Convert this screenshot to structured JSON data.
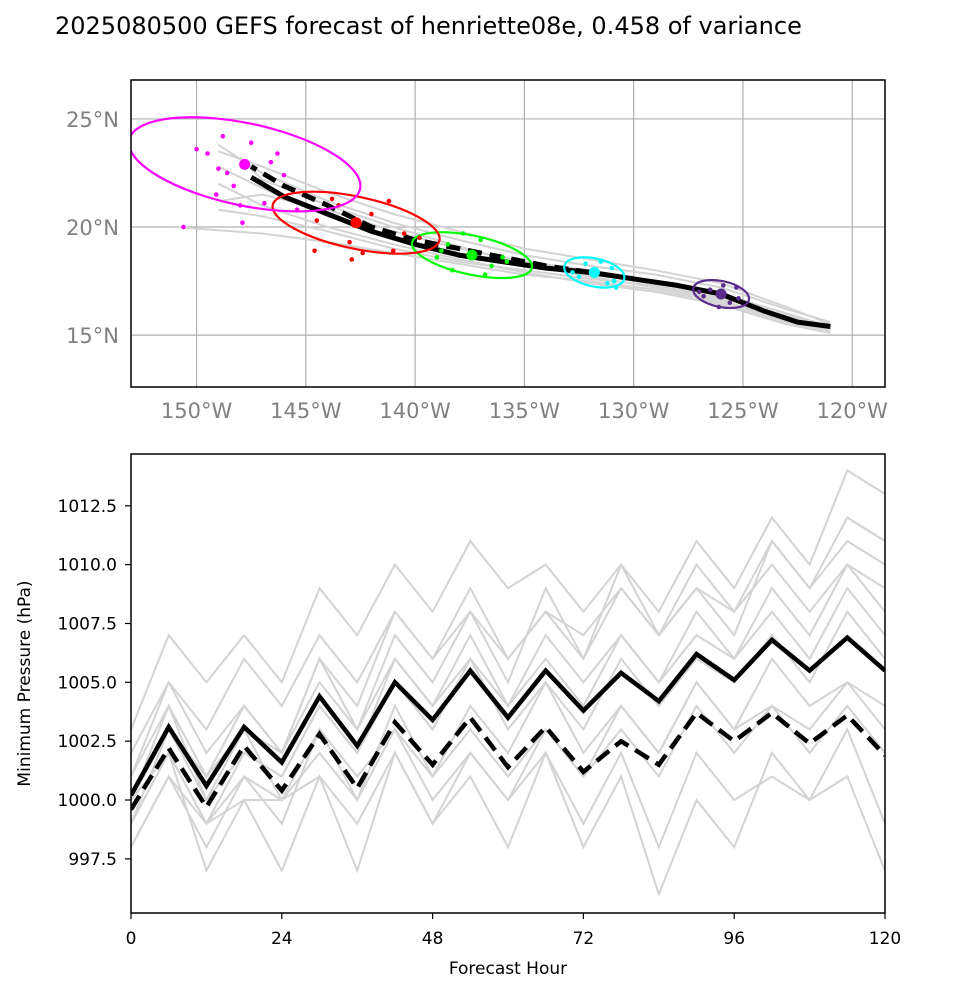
{
  "title": "2025080500 GEFS forecast of henriette08e, 0.458 of variance",
  "chart_data": [
    {
      "type": "scatter",
      "subtype": "track-map",
      "xlim": [
        -153,
        -118.5
      ],
      "ylim": [
        12.6,
        26.8
      ],
      "xticks": [
        -150,
        -145,
        -140,
        -135,
        -130,
        -125,
        -120
      ],
      "xtick_labels": [
        "150°W",
        "145°W",
        "140°W",
        "135°W",
        "130°W",
        "125°W",
        "120°W"
      ],
      "yticks": [
        15,
        20,
        25
      ],
      "ytick_labels": [
        "15°N",
        "20°N",
        "25°N"
      ],
      "grid": true,
      "ensemble_color": "#d3d3d3",
      "members": [
        [
          [
            -121,
            15.3
          ],
          [
            -123,
            15.8
          ],
          [
            -126,
            16.8
          ],
          [
            -129,
            17.4
          ],
          [
            -132,
            17.8
          ],
          [
            -135,
            18.2
          ],
          [
            -138,
            18.8
          ],
          [
            -141,
            19.5
          ],
          [
            -144,
            20.5
          ],
          [
            -147,
            21.8
          ],
          [
            -149,
            22.8
          ]
        ],
        [
          [
            -121,
            15.2
          ],
          [
            -123,
            15.6
          ],
          [
            -126,
            16.5
          ],
          [
            -129,
            17.1
          ],
          [
            -132,
            17.5
          ],
          [
            -135,
            17.8
          ],
          [
            -138,
            18.3
          ],
          [
            -141,
            18.8
          ],
          [
            -144,
            19.3
          ],
          [
            -147,
            19.7
          ],
          [
            -151,
            20.0
          ]
        ],
        [
          [
            -121,
            15.6
          ],
          [
            -123,
            16.2
          ],
          [
            -126,
            17.2
          ],
          [
            -129,
            17.8
          ],
          [
            -132,
            18.2
          ],
          [
            -135,
            18.7
          ],
          [
            -138,
            19.4
          ],
          [
            -141,
            20.2
          ],
          [
            -144,
            21.2
          ],
          [
            -147,
            22.5
          ],
          [
            -149,
            23.8
          ]
        ],
        [
          [
            -121,
            15.4
          ],
          [
            -123,
            16.0
          ],
          [
            -126,
            16.9
          ],
          [
            -129,
            17.5
          ],
          [
            -132,
            18.0
          ],
          [
            -135,
            18.4
          ],
          [
            -138,
            19.0
          ],
          [
            -141,
            19.8
          ],
          [
            -144,
            20.8
          ],
          [
            -147,
            21.5
          ],
          [
            -149,
            21.2
          ]
        ],
        [
          [
            -121,
            15.1
          ],
          [
            -123,
            15.5
          ],
          [
            -126,
            16.4
          ],
          [
            -129,
            17.0
          ],
          [
            -132,
            17.4
          ],
          [
            -135,
            17.9
          ],
          [
            -138,
            18.5
          ],
          [
            -141,
            19.2
          ],
          [
            -144,
            20.0
          ],
          [
            -147,
            21.0
          ],
          [
            -149,
            22.0
          ]
        ],
        [
          [
            -121,
            15.5
          ],
          [
            -123,
            16.3
          ],
          [
            -126,
            17.4
          ],
          [
            -129,
            18.0
          ],
          [
            -132,
            18.5
          ],
          [
            -135,
            19.0
          ],
          [
            -138,
            19.8
          ],
          [
            -141,
            20.6
          ],
          [
            -144,
            21.6
          ],
          [
            -147,
            22.8
          ],
          [
            -149,
            23.5
          ]
        ],
        [
          [
            -121,
            15.3
          ],
          [
            -123,
            15.9
          ],
          [
            -126,
            16.7
          ],
          [
            -129,
            17.3
          ],
          [
            -132,
            17.6
          ],
          [
            -135,
            18.0
          ],
          [
            -138,
            18.4
          ],
          [
            -141,
            19.0
          ],
          [
            -144,
            19.8
          ],
          [
            -147,
            20.5
          ],
          [
            -149,
            20.8
          ]
        ],
        [
          [
            -121,
            15.2
          ],
          [
            -123,
            15.7
          ],
          [
            -126,
            16.6
          ],
          [
            -129,
            17.2
          ],
          [
            -132,
            17.7
          ],
          [
            -135,
            18.3
          ],
          [
            -138,
            19.1
          ],
          [
            -141,
            20.0
          ],
          [
            -144,
            21.0
          ],
          [
            -147,
            22.2
          ],
          [
            -148,
            23.2
          ]
        ]
      ],
      "mean_track": [
        [
          -121,
          15.4
        ],
        [
          -122.5,
          15.6
        ],
        [
          -124,
          16.1
        ],
        [
          -126,
          16.9
        ],
        [
          -128,
          17.3
        ],
        [
          -130,
          17.6
        ],
        [
          -132,
          17.9
        ],
        [
          -134,
          18.1
        ],
        [
          -136,
          18.4
        ],
        [
          -138,
          18.7
        ],
        [
          -140,
          19.2
        ],
        [
          -142,
          19.8
        ],
        [
          -144,
          20.6
        ],
        [
          -146,
          21.4
        ],
        [
          -147.5,
          22.3
        ]
      ],
      "control_track": [
        [
          -132,
          17.9
        ],
        [
          -134,
          18.2
        ],
        [
          -136,
          18.6
        ],
        [
          -138,
          19.0
        ],
        [
          -140,
          19.4
        ],
        [
          -142,
          20.0
        ],
        [
          -144,
          21.0
        ],
        [
          -146,
          21.9
        ],
        [
          -147.5,
          22.8
        ]
      ],
      "time_groups": [
        {
          "color": "#5b2c8e",
          "center": [
            -126,
            16.9
          ],
          "ellipse": {
            "rx": 1.3,
            "ry": 0.6
          },
          "points": [
            [
              -126.5,
              17.1
            ],
            [
              -125.6,
              16.5
            ],
            [
              -125.3,
              17.2
            ],
            [
              -126.8,
              16.8
            ],
            [
              -126.1,
              16.3
            ],
            [
              -125.2,
              16.7
            ],
            [
              -127,
              17.0
            ],
            [
              -125.9,
              17.3
            ]
          ]
        },
        {
          "color": "#00ffff",
          "center": [
            -131.8,
            17.9
          ],
          "ellipse": {
            "rx": 1.4,
            "ry": 0.65
          },
          "points": [
            [
              -132.5,
              17.7
            ],
            [
              -131.2,
              17.4
            ],
            [
              -131,
              18.1
            ],
            [
              -132.2,
              18.3
            ],
            [
              -130.9,
              17.5
            ],
            [
              -132.8,
              17.9
            ],
            [
              -131.5,
              18.4
            ],
            [
              -130.8,
              17.2
            ]
          ]
        },
        {
          "color": "#00ff00",
          "center": [
            -137.4,
            18.7
          ],
          "ellipse": {
            "rx": 2.8,
            "ry": 0.9
          },
          "points": [
            [
              -139,
              18.6
            ],
            [
              -138.5,
              19.2
            ],
            [
              -136.5,
              18.2
            ],
            [
              -136,
              18.6
            ],
            [
              -137,
              19.4
            ],
            [
              -138.3,
              18.0
            ],
            [
              -136.8,
              17.8
            ],
            [
              -137.8,
              19.7
            ],
            [
              -135.8,
              18.4
            ],
            [
              -138.8,
              18.9
            ]
          ]
        },
        {
          "color": "#ff0000",
          "center": [
            -142.7,
            20.2
          ],
          "ellipse": {
            "rx": 3.9,
            "ry": 1.2
          },
          "points": [
            [
              -144.5,
              20.3
            ],
            [
              -143.5,
              21.0
            ],
            [
              -142,
              20.6
            ],
            [
              -141.2,
              21.2
            ],
            [
              -140.5,
              19.7
            ],
            [
              -143,
              19.3
            ],
            [
              -141,
              18.9
            ],
            [
              -142.4,
              18.8
            ],
            [
              -144.6,
              18.9
            ],
            [
              -139.8,
              19.5
            ],
            [
              -143.8,
              21.3
            ],
            [
              -142.9,
              18.5
            ]
          ]
        },
        {
          "color": "#ff00ff",
          "center": [
            -147.8,
            22.9
          ],
          "ellipse": {
            "rx": 5.4,
            "ry": 1.9
          },
          "points": [
            [
              -149.5,
              23.4
            ],
            [
              -148.6,
              22.5
            ],
            [
              -147.5,
              23.9
            ],
            [
              -146.6,
              23.0
            ],
            [
              -146,
              22.4
            ],
            [
              -148.3,
              21.9
            ],
            [
              -149,
              22.7
            ],
            [
              -150,
              23.6
            ],
            [
              -146.9,
              21.1
            ],
            [
              -145.4,
              20.8
            ],
            [
              -149.1,
              21.5
            ],
            [
              -146.3,
              23.4
            ],
            [
              -148,
              21.0
            ],
            [
              -147.9,
              20.2
            ],
            [
              -148.8,
              24.2
            ],
            [
              -150.6,
              20.0
            ]
          ]
        }
      ]
    },
    {
      "type": "line",
      "xlabel": "Forecast Hour",
      "ylabel": "Minimum Pressure (hPa)",
      "xlim": [
        0,
        120
      ],
      "ylim": [
        995.2,
        1014.7
      ],
      "xticks": [
        0,
        24,
        48,
        72,
        96,
        120
      ],
      "yticks": [
        997.5,
        1000.0,
        1002.5,
        1005.0,
        1007.5,
        1010.0,
        1012.5
      ],
      "ytick_labels": [
        "997.5",
        "1000.0",
        "1002.5",
        "1005.0",
        "1007.5",
        "1010.0",
        "1012.5"
      ],
      "x": [
        0,
        6,
        12,
        18,
        24,
        30,
        36,
        42,
        48,
        54,
        60,
        66,
        72,
        78,
        84,
        90,
        96,
        102,
        108,
        114,
        120
      ],
      "member_color": "#d3d3d3",
      "members": [
        [
          1000,
          1003,
          1001,
          1003,
          1002,
          1005,
          1003,
          1006,
          1004,
          1007,
          1004,
          1007,
          1005,
          1007,
          1005,
          1008,
          1006,
          1009,
          1007,
          1010,
          1008
        ],
        [
          998,
          1001,
          998,
          1001,
          999,
          1003,
          1000,
          1004,
          1001,
          1004,
          1002,
          1005,
          1002,
          1004,
          1002,
          1005,
          1003,
          1006,
          1004,
          1005,
          1003
        ],
        [
          1003,
          1007,
          1005,
          1007,
          1005,
          1009,
          1007,
          1010,
          1008,
          1011,
          1009,
          1010,
          1008,
          1010,
          1008,
          1011,
          1009,
          1012,
          1010,
          1014,
          1013
        ],
        [
          999,
          1002,
          997,
          1000,
          997,
          1001,
          997,
          1002,
          999,
          1001,
          998,
          1002,
          998,
          1001,
          996,
          1000,
          998,
          1002,
          1000,
          1001,
          997
        ],
        [
          1001,
          1005,
          1002,
          1004,
          1002,
          1006,
          1004,
          1008,
          1006,
          1009,
          1006,
          1008,
          1006,
          1010,
          1007,
          1009,
          1007,
          1011,
          1009,
          1012,
          1011
        ],
        [
          999,
          1002,
          999,
          1001,
          1000,
          1002,
          1000,
          1003,
          1001,
          1003,
          1001,
          1003,
          1001,
          1004,
          1002,
          1005,
          1003,
          1004,
          1003,
          1005,
          1004
        ],
        [
          1000,
          1004,
          1001,
          1004,
          1002,
          1006,
          1003,
          1007,
          1005,
          1008,
          1005,
          1009,
          1006,
          1009,
          1007,
          1010,
          1008,
          1011,
          1009,
          1011,
          1010
        ],
        [
          998,
          1001,
          999,
          1000,
          1000,
          1001,
          999,
          1002,
          999,
          1002,
          1000,
          1002,
          999,
          1002,
          998,
          1002,
          1000,
          1001,
          1000,
          1003,
          999
        ],
        [
          1002,
          1005,
          1003,
          1006,
          1004,
          1007,
          1005,
          1008,
          1006,
          1008,
          1006,
          1008,
          1007,
          1009,
          1007,
          1009,
          1008,
          1010,
          1008,
          1010,
          1009
        ],
        [
          1001,
          1004,
          1000,
          1002,
          1001,
          1004,
          1002,
          1005,
          1003,
          1006,
          1003,
          1005,
          1003,
          1006,
          1004,
          1006,
          1005,
          1007,
          1005,
          1008,
          1006
        ],
        [
          999,
          1003,
          1000,
          1003,
          1000,
          1003,
          1001,
          1003,
          1000,
          1002,
          1000,
          1003,
          1001,
          1003,
          1001,
          1004,
          1002,
          1004,
          1002,
          1004,
          1002
        ],
        [
          1000,
          1002,
          999,
          1002,
          1001,
          1004,
          1002,
          1006,
          1004,
          1006,
          1004,
          1006,
          1004,
          1007,
          1005,
          1007,
          1006,
          1008,
          1006,
          1009,
          1007
        ]
      ],
      "mean": [
        1000.2,
        1003.1,
        1000.6,
        1003.1,
        1001.6,
        1004.4,
        1002.3,
        1005.0,
        1003.4,
        1005.5,
        1003.5,
        1005.5,
        1003.8,
        1005.4,
        1004.2,
        1006.2,
        1005.1,
        1006.8,
        1005.5,
        1006.9,
        1005.5
      ],
      "control": [
        999.6,
        1002.2,
        999.7,
        1002.3,
        1000.4,
        1002.8,
        1000.5,
        1003.3,
        1001.5,
        1003.5,
        1001.4,
        1003.1,
        1001.2,
        1002.5,
        1001.5,
        1003.7,
        1002.5,
        1003.7,
        1002.4,
        1003.6,
        1001.9
      ]
    }
  ]
}
